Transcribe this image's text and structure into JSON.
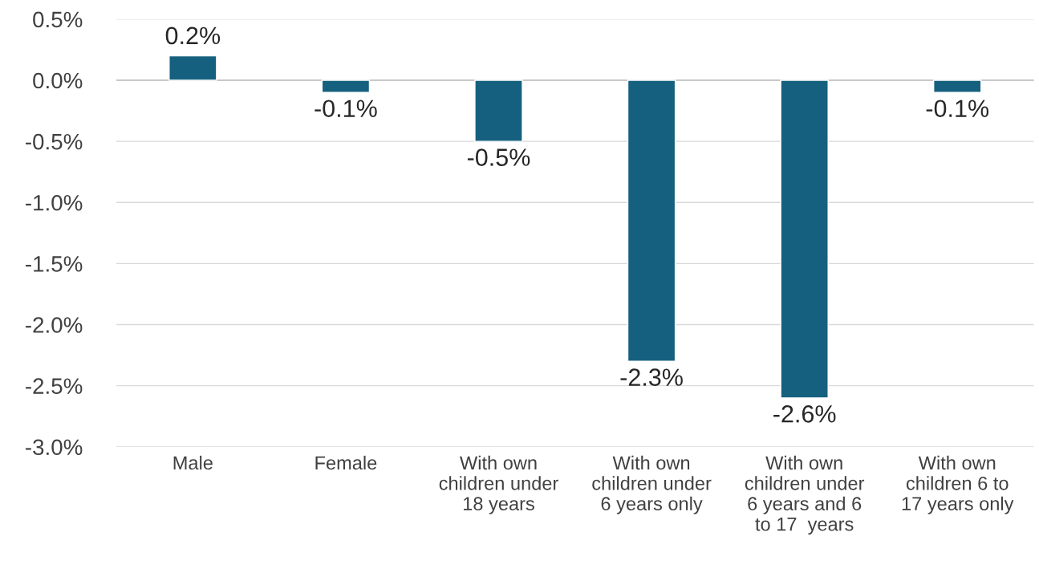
{
  "chart_data": {
    "type": "bar",
    "categories": [
      "Male",
      "Female",
      "With own\nchildren under\n18 years",
      "With own\nchildren under\n6 years only",
      "With own\nchildren under\n6 years and 6\nto 17  years",
      "With own\nchildren 6 to\n17 years only"
    ],
    "values": [
      0.2,
      -0.1,
      -0.5,
      -2.3,
      -2.6,
      -0.1
    ],
    "value_labels": [
      "0.2%",
      "-0.1%",
      "-0.5%",
      "-2.3%",
      "-2.6%",
      "-0.1%"
    ],
    "color": "#16607f",
    "ylim": [
      -3.0,
      0.5
    ],
    "yticks": [
      {
        "value": 0.5,
        "label": "0.5%"
      },
      {
        "value": 0.0,
        "label": "0.0%"
      },
      {
        "value": -0.5,
        "label": "-0.5%"
      },
      {
        "value": -1.0,
        "label": "-1.0%"
      },
      {
        "value": -1.5,
        "label": "-1.5%"
      },
      {
        "value": -2.0,
        "label": "-2.0%"
      },
      {
        "value": -2.5,
        "label": "-2.5%"
      },
      {
        "value": -3.0,
        "label": "-3.0%"
      }
    ],
    "grid": "y"
  }
}
